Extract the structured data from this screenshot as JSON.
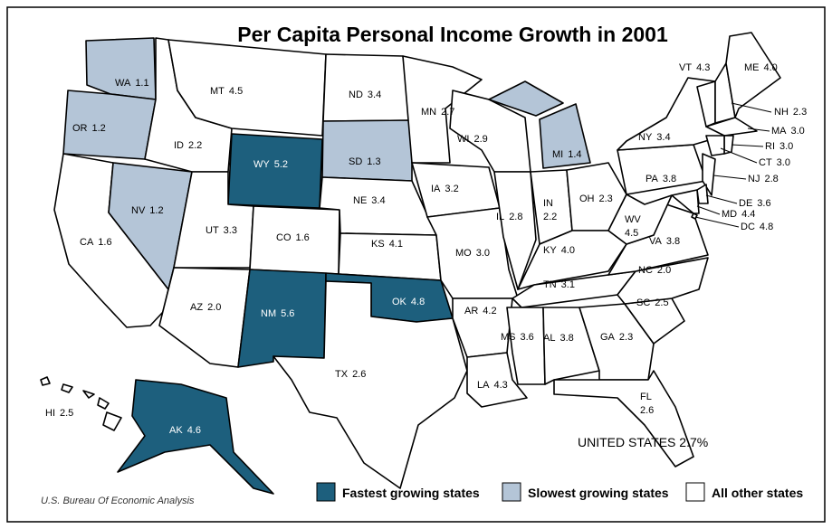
{
  "title": "Per Capita Personal Income Growth in 2001",
  "states": [
    {
      "abbr": "WA",
      "value": "1.1",
      "group": 1
    },
    {
      "abbr": "OR",
      "value": "1.2",
      "group": 1
    },
    {
      "abbr": "CA",
      "value": "1.6",
      "group": 2
    },
    {
      "abbr": "NV",
      "value": "1.2",
      "group": 1
    },
    {
      "abbr": "ID",
      "value": "2.2",
      "group": 2
    },
    {
      "abbr": "MT",
      "value": "4.5",
      "group": 2
    },
    {
      "abbr": "WY",
      "value": "5.2",
      "group": 0
    },
    {
      "abbr": "UT",
      "value": "3.3",
      "group": 2
    },
    {
      "abbr": "CO",
      "value": "1.6",
      "group": 2
    },
    {
      "abbr": "AZ",
      "value": "2.0",
      "group": 2
    },
    {
      "abbr": "NM",
      "value": "5.6",
      "group": 0
    },
    {
      "abbr": "ND",
      "value": "3.4",
      "group": 2
    },
    {
      "abbr": "SD",
      "value": "1.3",
      "group": 1
    },
    {
      "abbr": "NE",
      "value": "3.4",
      "group": 2
    },
    {
      "abbr": "KS",
      "value": "4.1",
      "group": 2
    },
    {
      "abbr": "OK",
      "value": "4.8",
      "group": 0
    },
    {
      "abbr": "TX",
      "value": "2.6",
      "group": 2
    },
    {
      "abbr": "MN",
      "value": "2.7",
      "group": 2
    },
    {
      "abbr": "IA",
      "value": "3.2",
      "group": 2
    },
    {
      "abbr": "MO",
      "value": "3.0",
      "group": 2
    },
    {
      "abbr": "AR",
      "value": "4.2",
      "group": 2
    },
    {
      "abbr": "LA",
      "value": "4.3",
      "group": 2
    },
    {
      "abbr": "WI",
      "value": "2.9",
      "group": 2
    },
    {
      "abbr": "IL",
      "value": "2.8",
      "group": 2
    },
    {
      "abbr": "IN",
      "value": "2.2",
      "group": 2
    },
    {
      "abbr": "MI",
      "value": "1.4",
      "group": 1
    },
    {
      "abbr": "OH",
      "value": "2.3",
      "group": 2
    },
    {
      "abbr": "KY",
      "value": "4.0",
      "group": 2
    },
    {
      "abbr": "TN",
      "value": "3.1",
      "group": 2
    },
    {
      "abbr": "MS",
      "value": "3.6",
      "group": 2
    },
    {
      "abbr": "AL",
      "value": "3.8",
      "group": 2
    },
    {
      "abbr": "GA",
      "value": "2.3",
      "group": 2
    },
    {
      "abbr": "FL",
      "value": "2.6",
      "group": 2
    },
    {
      "abbr": "SC",
      "value": "2.5",
      "group": 2
    },
    {
      "abbr": "NC",
      "value": "2.0",
      "group": 2
    },
    {
      "abbr": "VA",
      "value": "3.8",
      "group": 2
    },
    {
      "abbr": "WV",
      "value": "4.5",
      "group": 2
    },
    {
      "abbr": "PA",
      "value": "3.8",
      "group": 2
    },
    {
      "abbr": "NY",
      "value": "3.4",
      "group": 2
    },
    {
      "abbr": "VT",
      "value": "4.3",
      "group": 2
    },
    {
      "abbr": "NH",
      "value": "2.3",
      "group": 2
    },
    {
      "abbr": "ME",
      "value": "4.0",
      "group": 2
    },
    {
      "abbr": "MA",
      "value": "3.0",
      "group": 2
    },
    {
      "abbr": "RI",
      "value": "3.0",
      "group": 2
    },
    {
      "abbr": "CT",
      "value": "3.0",
      "group": 2
    },
    {
      "abbr": "NJ",
      "value": "2.8",
      "group": 2
    },
    {
      "abbr": "DE",
      "value": "3.6",
      "group": 2
    },
    {
      "abbr": "MD",
      "value": "4.4",
      "group": 2
    },
    {
      "abbr": "DC",
      "value": "4.8",
      "group": 2
    },
    {
      "abbr": "AK",
      "value": "4.6",
      "group": 0
    },
    {
      "abbr": "HI",
      "value": "2.5",
      "group": 2
    }
  ],
  "legend": [
    {
      "label": "Fastest growing states",
      "color": "#1d5f7d"
    },
    {
      "label": "Slowest growing states",
      "color": "#b4c5d7"
    },
    {
      "label": "All other states",
      "color": "#ffffff"
    }
  ],
  "national": {
    "label": "UNITED STATES",
    "value": "2.7%"
  },
  "source": "U.S. Bureau Of Economic Analysis"
}
